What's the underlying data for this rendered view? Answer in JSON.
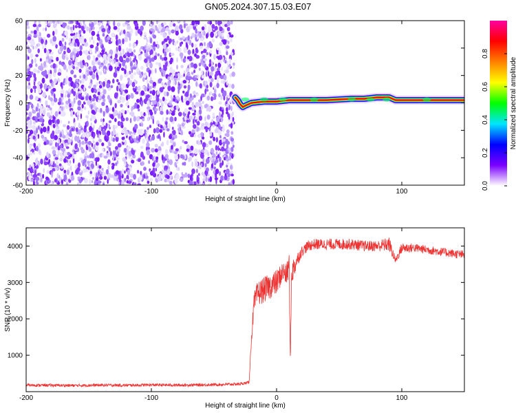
{
  "title": "GN05.2024.307.15.03.E07",
  "chart_data": [
    {
      "type": "heatmap",
      "xlabel": "Height of straight line (km)",
      "ylabel": "Frequency (Hz)",
      "xlim": [
        -200,
        150
      ],
      "ylim": [
        -60,
        60
      ],
      "xticks": [
        -200,
        -100,
        0,
        100
      ],
      "yticks": [
        -60,
        -40,
        -20,
        0,
        20,
        40,
        60
      ],
      "colorbar": {
        "label": "Normalized spectral amplitude",
        "range": [
          0,
          1
        ],
        "ticks": [
          0.0,
          0.2,
          0.4,
          0.6,
          0.8
        ],
        "colors": [
          "#ffffff",
          "#7a00ff",
          "#0000ff",
          "#00e5ff",
          "#00ff00",
          "#ffff00",
          "#ff8000",
          "#ff0000",
          "#ff00a0"
        ]
      },
      "noise_region_x": [
        -200,
        -33
      ],
      "signal_trace": {
        "x": [
          -33,
          -31,
          -29,
          -27,
          -25,
          -20,
          -10,
          0,
          10,
          20,
          40,
          60,
          70,
          80,
          90,
          95,
          100,
          110,
          120,
          150
        ],
        "y": [
          4,
          2,
          -1,
          -3,
          -2,
          0,
          1,
          1,
          2,
          2,
          2,
          3,
          3,
          4,
          4,
          2,
          2,
          2,
          2,
          2
        ]
      }
    },
    {
      "type": "line",
      "xlabel": "Height of straight line (km)",
      "ylabel": "SNR (10 * v/v)",
      "xlim": [
        -200,
        150
      ],
      "ylim": [
        0,
        4500
      ],
      "xticks": [
        -200,
        -100,
        0,
        100
      ],
      "yticks": [
        1000,
        2000,
        3000,
        4000
      ],
      "color": "#ee3333",
      "x": [
        -200,
        -180,
        -160,
        -140,
        -120,
        -100,
        -80,
        -60,
        -40,
        -30,
        -22,
        -20,
        -18,
        -15,
        -10,
        -5,
        0,
        5,
        8,
        10,
        11,
        12,
        14,
        16,
        20,
        25,
        30,
        40,
        50,
        60,
        70,
        80,
        90,
        95,
        100,
        110,
        120,
        130,
        140,
        150
      ],
      "y": [
        180,
        175,
        170,
        180,
        175,
        185,
        180,
        185,
        200,
        210,
        250,
        1500,
        2400,
        2700,
        2800,
        2900,
        3000,
        3300,
        3200,
        3500,
        800,
        3300,
        3400,
        3600,
        3850,
        4000,
        4050,
        4050,
        4050,
        4050,
        4000,
        4000,
        4050,
        3600,
        3950,
        3950,
        3900,
        3850,
        3800,
        3750
      ],
      "noise_amp": [
        40,
        40,
        40,
        40,
        40,
        40,
        40,
        40,
        40,
        40,
        40,
        150,
        300,
        350,
        350,
        350,
        350,
        300,
        300,
        450,
        100,
        400,
        300,
        200,
        150,
        150,
        150,
        150,
        150,
        150,
        150,
        150,
        200,
        100,
        150,
        120,
        120,
        120,
        120,
        120
      ]
    }
  ]
}
